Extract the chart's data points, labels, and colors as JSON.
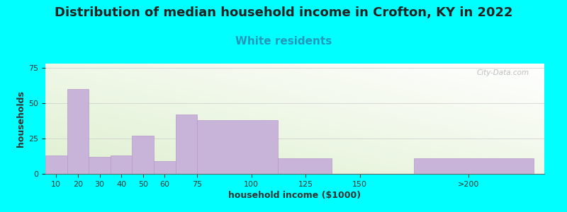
{
  "title": "Distribution of median household income in Crofton, KY in 2022",
  "subtitle": "White residents",
  "xlabel": "household income ($1000)",
  "ylabel": "households",
  "background_color": "#00FFFF",
  "bar_color": "#c8b4d8",
  "bar_edge_color": "#b898cc",
  "bar_left_edges": [
    5,
    15,
    25,
    35,
    45,
    55,
    65,
    75,
    112,
    137,
    175
  ],
  "bar_right_edges": [
    15,
    25,
    35,
    45,
    55,
    65,
    75,
    112,
    137,
    165,
    230
  ],
  "bar_values": [
    13,
    60,
    12,
    13,
    27,
    9,
    42,
    38,
    11,
    0,
    11
  ],
  "tick_positions": [
    10,
    20,
    30,
    40,
    50,
    60,
    75,
    100,
    125,
    150,
    200
  ],
  "tick_labels": [
    "10",
    "20",
    "30",
    "40",
    "50",
    "60",
    "75",
    "100",
    "125",
    "150",
    ">200"
  ],
  "xlim": [
    5,
    235
  ],
  "ylim": [
    0,
    78
  ],
  "yticks": [
    0,
    25,
    50,
    75
  ],
  "title_fontsize": 13,
  "subtitle_fontsize": 11,
  "subtitle_color": "#2299bb",
  "axis_label_fontsize": 9,
  "tick_fontsize": 8,
  "watermark": "City-Data.com"
}
